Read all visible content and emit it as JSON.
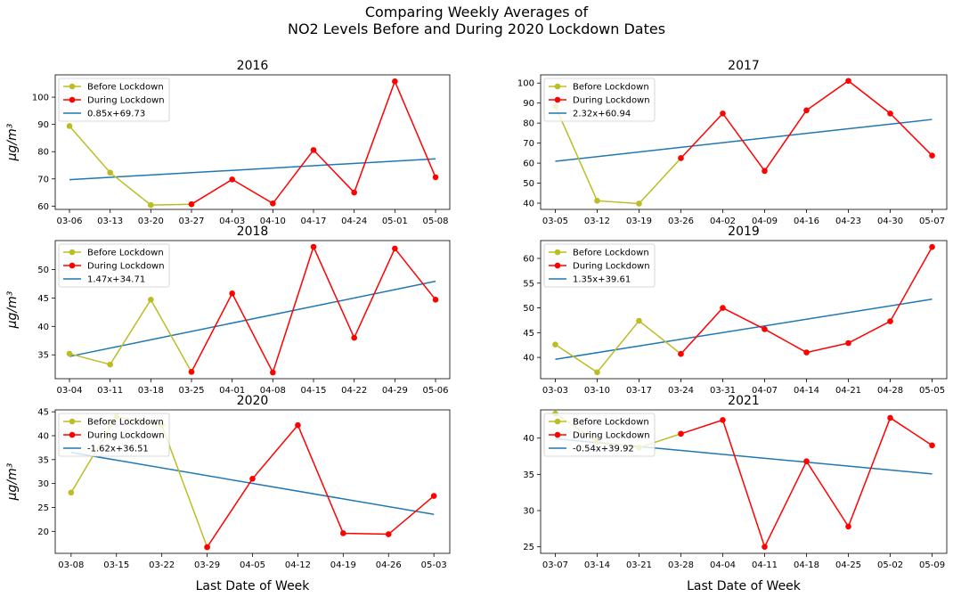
{
  "figure": {
    "title_line1": "Comparing Weekly Averages of",
    "title_line2": "NO2 Levels Before and During 2020 Lockdown Dates"
  },
  "colors": {
    "before": "#bcbd22",
    "during": "#ff0000",
    "trend": "#1f77b4"
  },
  "chart_data": [
    {
      "type": "line",
      "title": "2016",
      "xlabel": "",
      "ylabel": "μg/m³",
      "categories": [
        "03-06",
        "03-13",
        "03-20",
        "03-27",
        "04-03",
        "04-10",
        "04-17",
        "04-24",
        "05-01",
        "05-08"
      ],
      "before": {
        "name": "Before Lockdown",
        "x": [
          0,
          1,
          2,
          3
        ],
        "values": [
          89.4,
          72.3,
          60.4,
          60.7
        ]
      },
      "during": {
        "name": "During Lockdown",
        "x": [
          3,
          4,
          5,
          6,
          7,
          8,
          9
        ],
        "values": [
          60.7,
          69.8,
          61.0,
          80.6,
          65.0,
          105.8,
          70.6
        ]
      },
      "trend": {
        "name": "0.85x+69.73",
        "slope": 0.85,
        "intercept": 69.73
      },
      "ylim": [
        58.8,
        108.2
      ],
      "yticks": [
        60,
        70,
        80,
        90,
        100
      ],
      "legend": "top-left",
      "grid": false
    },
    {
      "type": "line",
      "title": "2017",
      "xlabel": "",
      "ylabel": "",
      "categories": [
        "03-05",
        "03-12",
        "03-19",
        "03-26",
        "04-02",
        "04-09",
        "04-16",
        "04-23",
        "04-30",
        "05-07"
      ],
      "before": {
        "name": "Before Lockdown",
        "x": [
          0,
          1,
          2,
          3
        ],
        "values": [
          88.5,
          41.2,
          39.8,
          62.5
        ]
      },
      "during": {
        "name": "During Lockdown",
        "x": [
          3,
          4,
          5,
          6,
          7,
          8,
          9
        ],
        "values": [
          62.5,
          84.8,
          56.1,
          86.4,
          101.1,
          84.8,
          63.8
        ]
      },
      "trend": {
        "name": "2.32x+60.94",
        "slope": 2.32,
        "intercept": 60.94
      },
      "ylim": [
        36.9,
        104.1
      ],
      "yticks": [
        40,
        50,
        60,
        70,
        80,
        90,
        100
      ],
      "legend": "top-left",
      "grid": false
    },
    {
      "type": "line",
      "title": "2018",
      "xlabel": "",
      "ylabel": "μg/m³",
      "categories": [
        "03-04",
        "03-11",
        "03-18",
        "03-25",
        "04-01",
        "04-08",
        "04-15",
        "04-22",
        "04-29",
        "05-06"
      ],
      "before": {
        "name": "Before Lockdown",
        "x": [
          0,
          1,
          2,
          3
        ],
        "values": [
          35.2,
          33.3,
          44.7,
          32.0
        ]
      },
      "during": {
        "name": "During Lockdown",
        "x": [
          3,
          4,
          5,
          6,
          7,
          8,
          9
        ],
        "values": [
          32.0,
          45.8,
          31.9,
          54.0,
          38.0,
          53.7,
          44.7
        ]
      },
      "trend": {
        "name": "1.47x+34.71",
        "slope": 1.47,
        "intercept": 34.71
      },
      "ylim": [
        30.8,
        55.1
      ],
      "yticks": [
        35,
        40,
        45,
        50
      ],
      "legend": "top-left",
      "grid": false
    },
    {
      "type": "line",
      "title": "2019",
      "xlabel": "",
      "ylabel": "",
      "categories": [
        "03-03",
        "03-10",
        "03-17",
        "03-24",
        "03-31",
        "04-07",
        "04-14",
        "04-21",
        "04-28",
        "05-05"
      ],
      "before": {
        "name": "Before Lockdown",
        "x": [
          0,
          1,
          2,
          3
        ],
        "values": [
          42.6,
          37.0,
          47.4,
          40.7
        ]
      },
      "during": {
        "name": "During Lockdown",
        "x": [
          3,
          4,
          5,
          6,
          7,
          8,
          9
        ],
        "values": [
          40.7,
          50.0,
          45.7,
          41.0,
          42.9,
          47.3,
          62.3
        ]
      },
      "trend": {
        "name": "1.35x+39.61",
        "slope": 1.35,
        "intercept": 39.61
      },
      "ylim": [
        35.7,
        63.6
      ],
      "yticks": [
        40,
        45,
        50,
        55,
        60
      ],
      "legend": "top-left",
      "grid": false
    },
    {
      "type": "line",
      "title": "2020",
      "xlabel": "Last Date of Week",
      "ylabel": "μg/m³",
      "categories": [
        "03-08",
        "03-15",
        "03-22",
        "03-29",
        "04-05",
        "04-12",
        "04-19",
        "04-26",
        "05-03"
      ],
      "before": {
        "name": "Before Lockdown",
        "x": [
          0,
          1,
          2,
          3
        ],
        "values": [
          28.1,
          44.0,
          42.2,
          16.7
        ]
      },
      "during": {
        "name": "During Lockdown",
        "x": [
          3,
          4,
          5,
          6,
          7,
          8
        ],
        "values": [
          16.7,
          31.0,
          42.2,
          19.6,
          19.4,
          27.4
        ]
      },
      "trend": {
        "name": "-1.62x+36.51",
        "slope": -1.62,
        "intercept": 36.51
      },
      "ylim": [
        15.4,
        45.4
      ],
      "yticks": [
        20,
        25,
        30,
        35,
        40,
        45
      ],
      "legend": "top-left",
      "grid": false
    },
    {
      "type": "line",
      "title": "2021",
      "xlabel": "Last Date of Week",
      "ylabel": "",
      "categories": [
        "03-07",
        "03-14",
        "03-21",
        "03-28",
        "04-04",
        "04-11",
        "04-18",
        "04-25",
        "05-02",
        "05-09"
      ],
      "before": {
        "name": "Before Lockdown",
        "x": [
          0,
          1,
          2,
          3
        ],
        "values": [
          43.4,
          39.5,
          38.7,
          40.6
        ]
      },
      "during": {
        "name": "During Lockdown",
        "x": [
          3,
          4,
          5,
          6,
          7,
          8,
          9
        ],
        "values": [
          40.6,
          42.5,
          25.0,
          36.8,
          27.8,
          42.8,
          39.0
        ]
      },
      "trend": {
        "name": "-0.54x+39.92",
        "slope": -0.54,
        "intercept": 39.92
      },
      "ylim": [
        24.1,
        43.9
      ],
      "yticks": [
        25,
        30,
        35,
        40
      ],
      "legend": "top-left",
      "grid": false
    }
  ]
}
